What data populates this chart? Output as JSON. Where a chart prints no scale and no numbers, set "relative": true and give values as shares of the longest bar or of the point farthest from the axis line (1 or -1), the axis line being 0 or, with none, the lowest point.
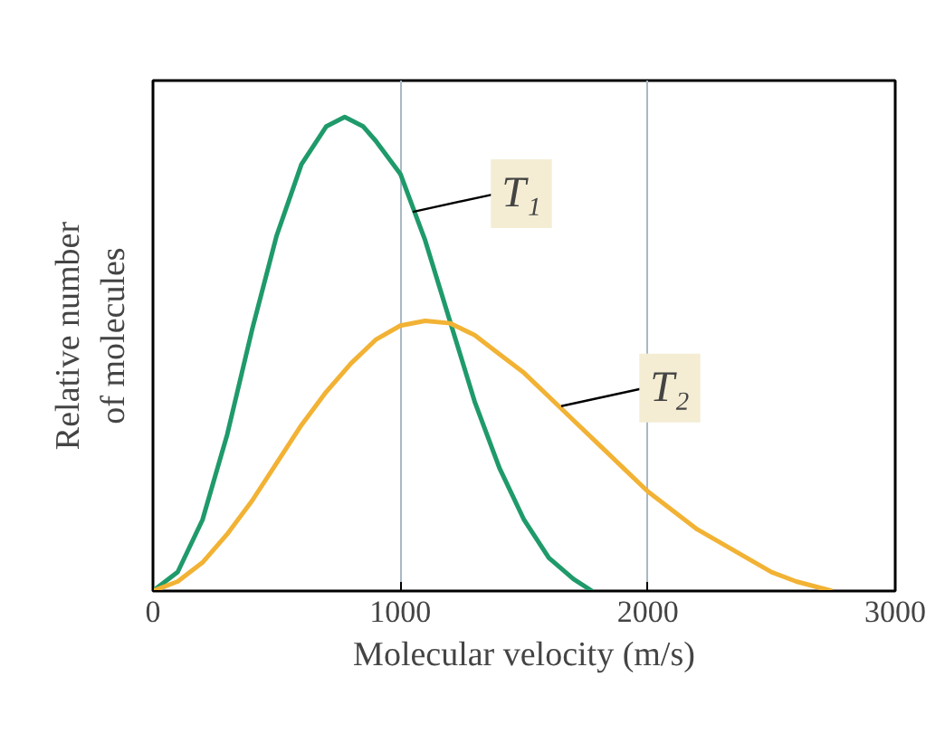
{
  "chart_data": {
    "type": "line",
    "relative": true,
    "xlabel": "Molecular velocity (m/s)",
    "ylabel": "Relative number\nof molecules",
    "xlim": [
      0,
      3000
    ],
    "xticks": [
      0,
      1000,
      2000,
      3000
    ],
    "grid": "x",
    "marker": "none",
    "line_style": "solid",
    "series": [
      {
        "color": "#1f9a6a",
        "x": [
          0,
          100,
          200,
          300,
          400,
          500,
          600,
          700,
          775,
          850,
          900,
          1000,
          1100,
          1200,
          1300,
          1400,
          1500,
          1600,
          1700,
          1775
        ],
        "values": [
          0,
          0.04,
          0.15,
          0.33,
          0.55,
          0.75,
          0.9,
          0.98,
          1.0,
          0.98,
          0.95,
          0.88,
          0.74,
          0.57,
          0.4,
          0.26,
          0.15,
          0.07,
          0.025,
          0
        ]
      },
      {
        "color": "#f2b234",
        "x": [
          0,
          100,
          200,
          300,
          400,
          500,
          600,
          700,
          800,
          900,
          1000,
          1100,
          1200,
          1300,
          1400,
          1500,
          1600,
          1700,
          1800,
          1900,
          2000,
          2100,
          2200,
          2300,
          2400,
          2500,
          2600,
          2745
        ],
        "values": [
          0,
          0.02,
          0.06,
          0.12,
          0.19,
          0.27,
          0.35,
          0.42,
          0.48,
          0.53,
          0.56,
          0.57,
          0.565,
          0.54,
          0.5,
          0.46,
          0.41,
          0.36,
          0.31,
          0.26,
          0.21,
          0.17,
          0.13,
          0.1,
          0.07,
          0.04,
          0.02,
          0
        ]
      }
    ],
    "annotations": [
      {
        "text": "T₁",
        "x": 1050,
        "y": 0.8
      },
      {
        "text": "T₂",
        "x": 1650,
        "y": 0.39
      }
    ]
  }
}
